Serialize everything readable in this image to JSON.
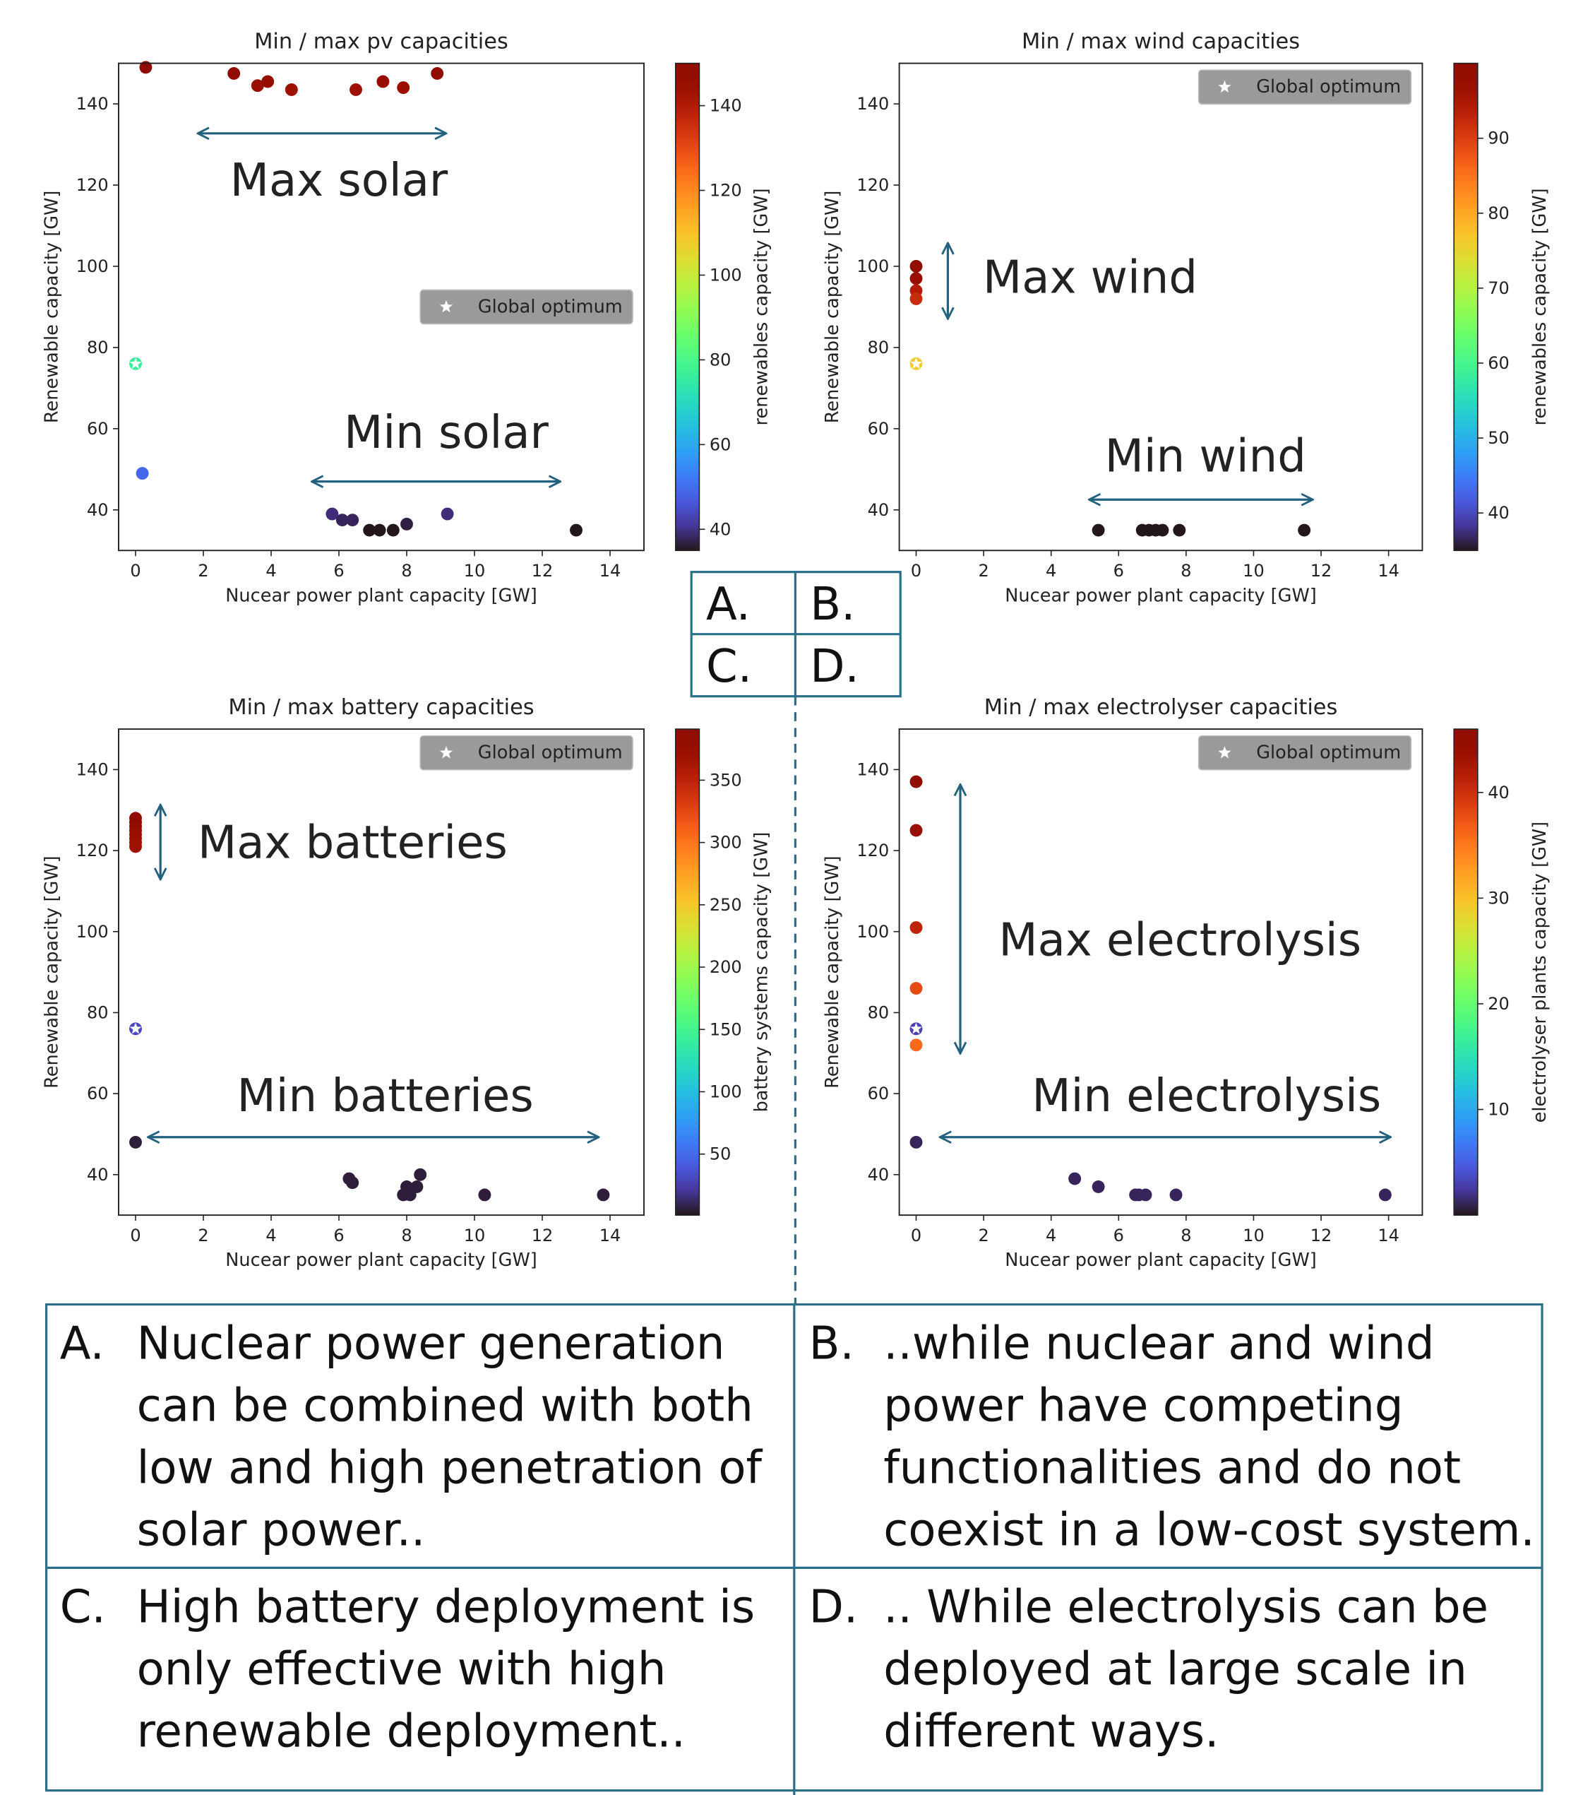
{
  "chart_data": [
    {
      "type": "scatter",
      "title": "Min / max pv capacities",
      "xlabel": "Nucear power plant capacity [GW]",
      "ylabel": "Renewable capacity [GW]",
      "colorbar_label": "renewables capacity [GW]",
      "colormap": "turbo",
      "xlim": [
        -0.5,
        15
      ],
      "ylim": [
        30,
        150
      ],
      "xticks": [
        0,
        2,
        4,
        6,
        8,
        10,
        12,
        14
      ],
      "yticks": [
        40,
        60,
        80,
        100,
        120,
        140
      ],
      "clim": [
        35,
        150
      ],
      "cticks": [
        40,
        60,
        80,
        100,
        120,
        140
      ],
      "legend": "center right",
      "annotations": [
        "Max solar",
        "Min solar"
      ],
      "series": [
        {
          "x": [
            0.3,
            2.9,
            3.6,
            3.9,
            4.6,
            6.5,
            7.3,
            7.9,
            8.9,
            0.2,
            5.8,
            6.1,
            6.4,
            6.9,
            7.2,
            7.6,
            8.0,
            9.2,
            13.0
          ],
          "y": [
            149,
            147.5,
            144.5,
            145.5,
            143.5,
            143.5,
            145.5,
            144,
            147.5,
            49,
            39,
            37.5,
            37.5,
            35,
            35,
            35,
            36.5,
            39,
            35
          ],
          "c": [
            149,
            147.5,
            144.5,
            145.5,
            143.5,
            143.5,
            145.5,
            144,
            147.5,
            49,
            39,
            37.5,
            37.5,
            35,
            35,
            35,
            36.5,
            39,
            35
          ]
        },
        {
          "name": "Global optimum",
          "marker": "star",
          "x": [
            0
          ],
          "y": [
            76
          ],
          "c": [
            76
          ]
        }
      ]
    },
    {
      "type": "scatter",
      "title": "Min / max wind capacities",
      "xlabel": "Nucear power plant capacity [GW]",
      "ylabel": "Renewable capacity [GW]",
      "colorbar_label": "renewables capacity [GW]",
      "colormap": "turbo",
      "xlim": [
        -0.5,
        15
      ],
      "ylim": [
        30,
        150
      ],
      "xticks": [
        0,
        2,
        4,
        6,
        8,
        10,
        12,
        14
      ],
      "yticks": [
        40,
        60,
        80,
        100,
        120,
        140
      ],
      "clim": [
        35,
        100
      ],
      "cticks": [
        40,
        50,
        60,
        70,
        80,
        90
      ],
      "legend": "upper right",
      "annotations": [
        "Max wind",
        "Min wind"
      ],
      "series": [
        {
          "x": [
            0,
            0,
            0,
            0,
            5.4,
            6.7,
            6.9,
            7.1,
            7.3,
            7.8,
            11.5
          ],
          "y": [
            100,
            97,
            94,
            92,
            35,
            35,
            35,
            35,
            35,
            35,
            35
          ],
          "c": [
            100,
            97,
            94,
            92,
            35,
            35,
            35,
            35,
            35,
            35,
            35
          ]
        },
        {
          "name": "Global optimum",
          "marker": "star",
          "x": [
            0
          ],
          "y": [
            76
          ],
          "c": [
            76
          ]
        }
      ]
    },
    {
      "type": "scatter",
      "title": "Min / max battery capacities",
      "xlabel": "Nucear power plant capacity [GW]",
      "ylabel": "Renewable capacity [GW]",
      "colorbar_label": "battery systems capacity [GW]",
      "colormap": "turbo",
      "xlim": [
        -0.5,
        15
      ],
      "ylim": [
        30,
        150
      ],
      "xticks": [
        0,
        2,
        4,
        6,
        8,
        10,
        12,
        14
      ],
      "yticks": [
        40,
        60,
        80,
        100,
        120,
        140
      ],
      "clim": [
        1,
        391
      ],
      "cticks": [
        50,
        100,
        150,
        200,
        250,
        300,
        350
      ],
      "legend": "upper right",
      "annotations": [
        "Max batteries",
        "Min batteries"
      ],
      "series": [
        {
          "x": [
            0,
            0,
            0,
            0,
            0,
            0,
            0,
            0,
            0,
            6.3,
            6.4,
            7.9,
            8.0,
            8.1,
            8.3,
            8.4,
            10.3,
            13.8
          ],
          "y": [
            128,
            127,
            126,
            125,
            124,
            123,
            122,
            121,
            48,
            39,
            38,
            35,
            37,
            35,
            37,
            40,
            35,
            35
          ],
          "c": [
            385,
            383,
            380,
            378,
            375,
            372,
            370,
            368,
            5,
            5,
            5,
            5,
            5,
            5,
            5,
            5,
            5,
            5
          ]
        },
        {
          "name": "Global optimum",
          "marker": "star",
          "x": [
            0
          ],
          "y": [
            76
          ],
          "c": [
            30
          ]
        }
      ]
    },
    {
      "type": "scatter",
      "title": "Min / max electrolyser capacities",
      "xlabel": "Nucear power plant capacity [GW]",
      "ylabel": "Renewable capacity [GW]",
      "colorbar_label": "electrolyser plants capacity [GW]",
      "colormap": "turbo",
      "xlim": [
        -0.5,
        15
      ],
      "ylim": [
        30,
        150
      ],
      "xticks": [
        0,
        2,
        4,
        6,
        8,
        10,
        12,
        14
      ],
      "yticks": [
        40,
        60,
        80,
        100,
        120,
        140
      ],
      "clim": [
        0,
        46
      ],
      "cticks": [
        10,
        20,
        30,
        40
      ],
      "legend": "upper right",
      "annotations": [
        "Max electrolysis",
        "Min electrolysis"
      ],
      "series": [
        {
          "x": [
            0,
            0,
            0,
            0,
            0,
            0,
            4.7,
            5.4,
            6.5,
            6.6,
            6.8,
            7.7,
            13.9
          ],
          "y": [
            137,
            125,
            101,
            86,
            72,
            48,
            39,
            37,
            35,
            35,
            35,
            35,
            35
          ],
          "c": [
            46,
            44,
            41,
            38,
            36,
            1,
            1,
            1,
            1,
            1,
            1,
            1,
            1
          ]
        },
        {
          "name": "Global optimum",
          "marker": "star",
          "x": [
            0
          ],
          "y": [
            76
          ],
          "c": [
            3
          ]
        }
      ]
    }
  ],
  "panel_labels": [
    "A.",
    "B.",
    "C.",
    "D."
  ],
  "table": {
    "rows": [
      [
        {
          "label": "A.",
          "lines": [
            "Nuclear power generation",
            "can be combined with both",
            "low and high penetration of",
            "solar power.."
          ]
        },
        {
          "label": "B.",
          "lines": [
            "..while nuclear and wind",
            "power have competing",
            "functionalities and do not",
            "coexist in a low-cost system."
          ]
        }
      ],
      [
        {
          "label": "C.",
          "lines": [
            "High battery deployment is",
            "only effective with high",
            "renewable deployment.."
          ]
        },
        {
          "label": "D.",
          "lines": [
            ".. While electrolysis can be",
            "deployed at large scale in",
            "different ways."
          ]
        }
      ]
    ]
  }
}
